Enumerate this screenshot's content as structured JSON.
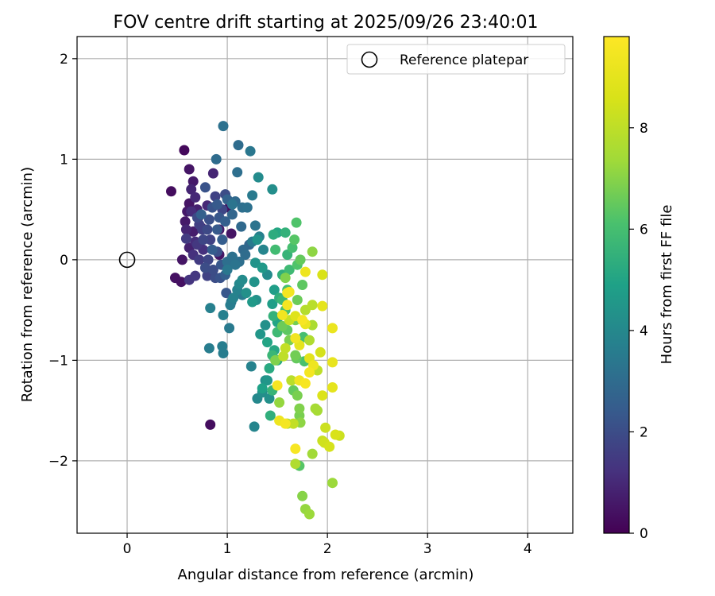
{
  "chart_data": {
    "type": "scatter",
    "title": "FOV centre drift starting at 2025/09/26 23:40:01",
    "xlabel": "Angular distance from reference (arcmin)",
    "ylabel": "Rotation from reference (arcmin)",
    "xlim": [
      -0.5,
      4.45
    ],
    "ylim": [
      -2.72,
      2.22
    ],
    "xticks": [
      0,
      1,
      2,
      3,
      4
    ],
    "xtick_labels": [
      "0",
      "1",
      "2",
      "3",
      "4"
    ],
    "yticks": [
      -2,
      -1,
      0,
      1,
      2
    ],
    "ytick_labels": [
      "−2",
      "−1",
      "0",
      "1",
      "2"
    ],
    "grid": true,
    "legend": {
      "position": "top-right",
      "entries": [
        "Reference platepar"
      ]
    },
    "reference_point": {
      "x": 0,
      "y": 0,
      "label": "Reference platepar"
    },
    "colorbar": {
      "label": "Hours from first FF file",
      "range": [
        0,
        9.8
      ],
      "ticks": [
        0,
        2,
        4,
        6,
        8
      ],
      "tick_labels": [
        "0",
        "2",
        "4",
        "6",
        "8"
      ],
      "colormap": "viridis"
    },
    "points": [
      [
        0.57,
        1.09,
        0.2
      ],
      [
        0.44,
        0.68,
        0.3
      ],
      [
        0.83,
        -1.64,
        0.3
      ],
      [
        0.48,
        -0.18,
        0.4
      ],
      [
        0.54,
        -0.22,
        0.4
      ],
      [
        0.62,
        0.9,
        0.5
      ],
      [
        0.66,
        0.78,
        0.6
      ],
      [
        0.62,
        0.56,
        0.5
      ],
      [
        0.58,
        0.38,
        0.6
      ],
      [
        0.66,
        0.28,
        0.7
      ],
      [
        0.55,
        0.0,
        0.5
      ],
      [
        0.62,
        0.12,
        0.8
      ],
      [
        0.71,
        0.42,
        0.8
      ],
      [
        0.92,
        0.05,
        0.5
      ],
      [
        0.86,
        0.86,
        0.9
      ],
      [
        0.8,
        0.54,
        1.0
      ],
      [
        0.76,
        0.1,
        1.2
      ],
      [
        0.62,
        -0.2,
        1.3
      ],
      [
        0.68,
        -0.16,
        1.4
      ],
      [
        0.59,
        0.21,
        1.5
      ],
      [
        0.75,
        0.3,
        1.6
      ],
      [
        0.83,
        0.2,
        1.7
      ],
      [
        0.88,
        0.63,
        1.7
      ],
      [
        0.95,
        0.5,
        1.8
      ],
      [
        0.7,
        0.42,
        1.9
      ],
      [
        0.78,
        -0.08,
        2.0
      ],
      [
        0.81,
        0.0,
        1.8
      ],
      [
        0.88,
        -0.18,
        2.0
      ],
      [
        0.93,
        -0.18,
        2.2
      ],
      [
        0.98,
        0.65,
        2.0
      ],
      [
        0.78,
        0.72,
        2.2
      ],
      [
        0.99,
        -0.33,
        2.3
      ],
      [
        0.9,
        0.3,
        2.4
      ],
      [
        0.85,
        0.1,
        2.5
      ],
      [
        0.74,
        0.45,
        2.6
      ],
      [
        0.89,
        1.0,
        3.0
      ],
      [
        0.96,
        1.33,
        3.2
      ],
      [
        1.11,
        1.14,
        3.0
      ],
      [
        1.1,
        0.87,
        3.1
      ],
      [
        1.05,
        0.55,
        3.3
      ],
      [
        1.2,
        0.52,
        3.2
      ],
      [
        1.0,
        -0.02,
        3.1
      ],
      [
        1.08,
        -0.05,
        3.3
      ],
      [
        1.04,
        -0.42,
        3.4
      ],
      [
        1.15,
        -0.35,
        3.5
      ],
      [
        1.23,
        1.08,
        3.4
      ],
      [
        1.25,
        0.64,
        3.5
      ],
      [
        0.95,
        -0.86,
        3.6
      ],
      [
        0.96,
        -0.93,
        3.6
      ],
      [
        1.02,
        -0.68,
        3.5
      ],
      [
        0.82,
        -0.88,
        3.6
      ],
      [
        0.83,
        -0.48,
        3.7
      ],
      [
        0.96,
        -0.55,
        3.7
      ],
      [
        1.1,
        -0.3,
        3.8
      ],
      [
        1.24,
        -1.06,
        3.8
      ],
      [
        1.27,
        -1.66,
        3.9
      ],
      [
        1.3,
        -1.38,
        4.0
      ],
      [
        1.35,
        -1.32,
        4.2
      ],
      [
        1.38,
        -1.2,
        4.2
      ],
      [
        1.42,
        -1.38,
        4.3
      ],
      [
        1.4,
        -1.2,
        4.5
      ],
      [
        1.38,
        -0.65,
        4.3
      ],
      [
        1.33,
        -0.74,
        4.5
      ],
      [
        1.31,
        0.82,
        4.1
      ],
      [
        1.45,
        0.7,
        4.2
      ],
      [
        1.3,
        0.2,
        4.4
      ],
      [
        1.29,
        -0.4,
        4.3
      ],
      [
        1.28,
        -0.03,
        4.4
      ],
      [
        1.27,
        -0.22,
        4.4
      ],
      [
        1.35,
        -0.08,
        4.6
      ],
      [
        1.47,
        -0.3,
        4.8
      ],
      [
        1.45,
        -0.44,
        4.8
      ],
      [
        1.5,
        -0.62,
        5.0
      ],
      [
        1.47,
        -0.9,
        5.1
      ],
      [
        1.5,
        -1.0,
        5.2
      ],
      [
        1.5,
        0.27,
        5.1
      ],
      [
        1.46,
        0.25,
        5.3
      ],
      [
        1.55,
        -0.15,
        5.4
      ],
      [
        1.52,
        -0.38,
        5.4
      ],
      [
        1.58,
        0.27,
        5.5
      ],
      [
        1.6,
        0.05,
        5.6
      ],
      [
        1.62,
        -0.1,
        5.8
      ],
      [
        1.55,
        -0.4,
        5.7
      ],
      [
        1.48,
        0.1,
        5.9
      ],
      [
        1.6,
        -0.3,
        6.0
      ],
      [
        1.58,
        -0.5,
        6.1
      ],
      [
        1.65,
        0.12,
        6.0
      ],
      [
        1.69,
        0.37,
        6.2
      ],
      [
        1.67,
        0.2,
        6.3
      ],
      [
        1.7,
        -0.05,
        6.2
      ],
      [
        1.75,
        -0.25,
        6.4
      ],
      [
        1.73,
        0.0,
        6.5
      ],
      [
        1.7,
        -0.4,
        6.6
      ],
      [
        1.6,
        -0.7,
        6.4
      ],
      [
        1.68,
        -0.95,
        6.7
      ],
      [
        1.66,
        -1.3,
        6.5
      ],
      [
        1.72,
        -1.55,
        6.8
      ],
      [
        1.72,
        -1.48,
        6.9
      ],
      [
        1.73,
        -1.62,
        7.1
      ],
      [
        1.7,
        -1.35,
        6.8
      ],
      [
        1.72,
        -2.05,
        6.3
      ],
      [
        1.75,
        -2.35,
        7.0
      ],
      [
        1.78,
        -2.48,
        7.2
      ],
      [
        1.82,
        -2.53,
        7.3
      ],
      [
        1.85,
        -1.93,
        7.4
      ],
      [
        1.88,
        -1.48,
        7.5
      ],
      [
        1.9,
        -1.5,
        7.5
      ],
      [
        1.85,
        -0.65,
        7.6
      ],
      [
        1.82,
        -0.8,
        7.7
      ],
      [
        1.78,
        -0.5,
        7.8
      ],
      [
        1.85,
        -0.45,
        7.9
      ],
      [
        1.85,
        0.08,
        7.1
      ],
      [
        1.9,
        -1.1,
        8.0
      ],
      [
        1.95,
        -1.8,
        8.2
      ],
      [
        1.97,
        -1.82,
        8.4
      ],
      [
        2.02,
        -1.86,
        8.5
      ],
      [
        1.98,
        -1.67,
        8.3
      ],
      [
        2.08,
        -1.74,
        8.6
      ],
      [
        2.12,
        -1.75,
        8.3
      ],
      [
        2.05,
        -2.22,
        7.3
      ],
      [
        1.95,
        -0.15,
        8.6
      ],
      [
        1.93,
        -0.92,
        8.5
      ],
      [
        1.95,
        -1.35,
        8.7
      ],
      [
        2.05,
        -1.27,
        9.0
      ],
      [
        2.05,
        -1.02,
        9.1
      ],
      [
        2.05,
        -0.68,
        9.2
      ],
      [
        1.95,
        -0.46,
        9.0
      ],
      [
        1.78,
        -0.12,
        9.3
      ],
      [
        1.62,
        -0.32,
        9.4
      ],
      [
        1.6,
        -0.45,
        9.5
      ],
      [
        1.55,
        -0.55,
        9.4
      ],
      [
        1.5,
        -1.25,
        9.6
      ],
      [
        1.52,
        -1.6,
        9.3
      ],
      [
        1.58,
        -1.63,
        9.5
      ],
      [
        1.68,
        -1.88,
        9.6
      ],
      [
        1.72,
        -1.2,
        9.4
      ],
      [
        1.78,
        -1.23,
        9.6
      ],
      [
        1.82,
        -1.12,
        9.5
      ],
      [
        1.86,
        -1.05,
        9.3
      ],
      [
        1.78,
        -0.64,
        9.2
      ],
      [
        1.75,
        -0.6,
        9.6
      ],
      [
        1.68,
        -0.78,
        9.4
      ],
      [
        1.72,
        -0.85,
        9.0
      ],
      [
        1.82,
        -0.98,
        8.9
      ],
      [
        1.68,
        -0.56,
        8.8
      ],
      [
        1.6,
        -0.33,
        9.5
      ],
      [
        1.62,
        -0.6,
        8.2
      ],
      [
        1.58,
        -0.88,
        8.1
      ],
      [
        1.56,
        -0.96,
        8.0
      ],
      [
        1.64,
        -1.2,
        7.9
      ],
      [
        1.68,
        -2.03,
        7.7
      ],
      [
        1.66,
        -1.63,
        8.1
      ],
      [
        1.6,
        -1.63,
        7.5
      ],
      [
        1.52,
        -1.42,
        7.2
      ],
      [
        1.48,
        -1.0,
        6.9
      ],
      [
        1.62,
        -0.8,
        6.8
      ],
      [
        1.55,
        -0.66,
        6.6
      ],
      [
        1.58,
        -0.18,
        6.9
      ],
      [
        1.68,
        -0.6,
        6.7
      ],
      [
        1.77,
        -1.01,
        6.1
      ],
      [
        1.69,
        -0.98,
        6.5
      ],
      [
        1.76,
        -0.77,
        6.0
      ],
      [
        1.5,
        -0.72,
        5.8
      ],
      [
        1.46,
        -0.56,
        5.5
      ],
      [
        1.45,
        -0.95,
        5.7
      ],
      [
        1.45,
        -1.3,
        5.6
      ],
      [
        1.43,
        -1.55,
        5.4
      ],
      [
        1.42,
        -1.08,
        5.2
      ],
      [
        1.4,
        -0.82,
        5.0
      ],
      [
        1.35,
        -1.28,
        4.9
      ],
      [
        1.25,
        -0.42,
        4.6
      ],
      [
        1.19,
        -0.33,
        4.3
      ],
      [
        1.15,
        -0.2,
        4.1
      ],
      [
        1.12,
        -0.24,
        4.0
      ],
      [
        1.06,
        -0.38,
        3.8
      ],
      [
        1.03,
        -0.45,
        3.6
      ],
      [
        1.0,
        -0.1,
        3.4
      ],
      [
        1.05,
        0.03,
        3.2
      ],
      [
        1.12,
        -0.02,
        3.1
      ],
      [
        1.16,
        0.1,
        2.9
      ],
      [
        1.18,
        0.05,
        3.0
      ],
      [
        1.22,
        0.15,
        2.8
      ],
      [
        1.14,
        0.33,
        2.9
      ],
      [
        1.05,
        0.45,
        2.8
      ],
      [
        0.98,
        0.38,
        2.6
      ],
      [
        0.95,
        0.2,
        2.5
      ],
      [
        0.92,
        0.42,
        2.3
      ],
      [
        0.9,
        0.55,
        2.4
      ],
      [
        0.85,
        0.52,
        2.2
      ],
      [
        0.82,
        0.4,
        2.1
      ],
      [
        0.8,
        0.3,
        1.9
      ],
      [
        0.76,
        0.2,
        1.8
      ],
      [
        0.72,
        0.35,
        1.6
      ],
      [
        0.7,
        0.15,
        1.4
      ],
      [
        0.66,
        0.05,
        1.2
      ],
      [
        0.64,
        0.48,
        1.1
      ],
      [
        0.68,
        0.62,
        1.0
      ],
      [
        0.64,
        0.7,
        0.9
      ],
      [
        0.7,
        0.5,
        0.8
      ],
      [
        0.74,
        0.32,
        0.7
      ],
      [
        0.6,
        0.48,
        0.6
      ],
      [
        0.59,
        0.3,
        0.9
      ],
      [
        0.68,
        0.18,
        1.1
      ],
      [
        0.72,
        0.0,
        1.5
      ],
      [
        0.8,
        -0.16,
        1.7
      ],
      [
        0.86,
        -0.1,
        2.0
      ],
      [
        0.9,
        0.08,
        2.1
      ],
      [
        0.94,
        -0.05,
        2.3
      ],
      [
        0.98,
        -0.15,
        2.6
      ],
      [
        1.0,
        0.6,
        2.7
      ],
      [
        1.02,
        0.52,
        0.3
      ],
      [
        1.04,
        0.26,
        0.5
      ],
      [
        0.92,
        0.3,
        0.6
      ],
      [
        1.08,
        0.58,
        2.9
      ],
      [
        1.15,
        0.52,
        3.1
      ],
      [
        1.28,
        0.34,
        3.3
      ],
      [
        1.25,
        0.18,
        3.5
      ],
      [
        1.32,
        0.23,
        3.7
      ],
      [
        1.36,
        0.1,
        3.9
      ],
      [
        1.4,
        -0.15,
        4.1
      ]
    ]
  }
}
